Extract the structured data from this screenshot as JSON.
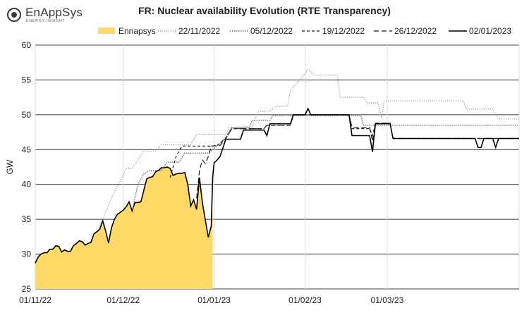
{
  "logo": {
    "name": "EnAppSys",
    "tagline": "ENERGY INSIGHT"
  },
  "chart_data": {
    "type": "line",
    "title": "FR: Nuclear availability Evolution (RTE Transparency)",
    "ylabel": "GW",
    "xlabel": "",
    "ylim": [
      25,
      60
    ],
    "yticks": [
      25,
      30,
      35,
      40,
      45,
      50,
      55,
      60
    ],
    "xlim": [
      "2022-11-01",
      "2023-04-15"
    ],
    "xticks": [
      {
        "date": "2022-11-01",
        "label": "01/11/22"
      },
      {
        "date": "2022-12-01",
        "label": "01/12/22"
      },
      {
        "date": "2023-01-01",
        "label": "01/01/23"
      },
      {
        "date": "2023-02-01",
        "label": "01/02/23"
      },
      {
        "date": "2023-03-01",
        "label": "01/03/23"
      }
    ],
    "grid": {
      "horizontal": true,
      "vertical": true
    },
    "legend_position": "top",
    "series": [
      {
        "name": "Ennapsys",
        "style": "area",
        "color": "#ffd966",
        "points": [
          [
            "2022-11-01",
            28.7
          ],
          [
            "2022-11-02",
            29.6
          ],
          [
            "2022-11-03",
            30.0
          ],
          [
            "2022-11-04",
            30.2
          ],
          [
            "2022-11-05",
            30.2
          ],
          [
            "2022-11-06",
            30.7
          ],
          [
            "2022-11-07",
            30.7
          ],
          [
            "2022-11-08",
            31.2
          ],
          [
            "2022-11-09",
            31.1
          ],
          [
            "2022-11-10",
            30.3
          ],
          [
            "2022-11-11",
            30.6
          ],
          [
            "2022-11-12",
            30.4
          ],
          [
            "2022-11-13",
            30.4
          ],
          [
            "2022-11-14",
            31.2
          ],
          [
            "2022-11-15",
            31.5
          ],
          [
            "2022-11-16",
            31.9
          ],
          [
            "2022-11-17",
            31.8
          ],
          [
            "2022-11-18",
            31.3
          ],
          [
            "2022-11-19",
            31.5
          ],
          [
            "2022-11-20",
            31.7
          ],
          [
            "2022-11-21",
            32.9
          ],
          [
            "2022-11-22",
            33.2
          ],
          [
            "2022-11-23",
            33.6
          ],
          [
            "2022-11-24",
            34.8
          ],
          [
            "2022-11-25",
            33.3
          ],
          [
            "2022-11-26",
            31.6
          ],
          [
            "2022-11-27",
            33.8
          ],
          [
            "2022-11-28",
            35.0
          ],
          [
            "2022-11-29",
            35.7
          ],
          [
            "2022-11-30",
            36.0
          ],
          [
            "2022-12-01",
            36.3
          ],
          [
            "2022-12-02",
            36.8
          ],
          [
            "2022-12-03",
            37.5
          ],
          [
            "2022-12-04",
            36.2
          ],
          [
            "2022-12-05",
            37.4
          ],
          [
            "2022-12-06",
            37.4
          ],
          [
            "2022-12-07",
            37.5
          ],
          [
            "2022-12-08",
            39.1
          ],
          [
            "2022-12-09",
            40.8
          ],
          [
            "2022-12-10",
            41.0
          ],
          [
            "2022-12-11",
            41.1
          ],
          [
            "2022-12-12",
            41.8
          ],
          [
            "2022-12-13",
            42.0
          ],
          [
            "2022-12-14",
            42.4
          ],
          [
            "2022-12-15",
            42.4
          ],
          [
            "2022-12-16",
            42.5
          ],
          [
            "2022-12-17",
            42.3
          ],
          [
            "2022-12-18",
            41.3
          ],
          [
            "2022-12-19",
            41.5
          ],
          [
            "2022-12-20",
            41.6
          ],
          [
            "2022-12-21",
            41.6
          ],
          [
            "2022-12-22",
            41.7
          ],
          [
            "2022-12-23",
            40.0
          ],
          [
            "2022-12-24",
            36.9
          ],
          [
            "2022-12-25",
            37.8
          ],
          [
            "2022-12-26",
            36.4
          ],
          [
            "2022-12-27",
            41.0
          ],
          [
            "2022-12-28",
            37.3
          ],
          [
            "2022-12-29",
            34.9
          ],
          [
            "2022-12-30",
            32.4
          ],
          [
            "2022-12-31",
            34.0
          ],
          [
            "2022-12-31T12:00",
            41.0
          ]
        ]
      },
      {
        "name": "22/11/2022",
        "style": "line",
        "dash": "dotted-fine",
        "color": "#808080",
        "points": [
          [
            "2022-11-22",
            33.6
          ],
          [
            "2022-11-24",
            35.0
          ],
          [
            "2022-11-26",
            37.0
          ],
          [
            "2022-11-28",
            39.0
          ],
          [
            "2022-11-30",
            40.5
          ],
          [
            "2022-12-02",
            42.3
          ],
          [
            "2022-12-04",
            42.3
          ],
          [
            "2022-12-06",
            43.5
          ],
          [
            "2022-12-08",
            44.8
          ],
          [
            "2022-12-12",
            44.8
          ],
          [
            "2022-12-14",
            45.7
          ],
          [
            "2022-12-24",
            45.7
          ],
          [
            "2022-12-26",
            47.2
          ],
          [
            "2023-01-05",
            47.2
          ],
          [
            "2023-01-06",
            48.2
          ],
          [
            "2023-01-14",
            48.3
          ],
          [
            "2023-01-16",
            50.5
          ],
          [
            "2023-01-20",
            50.5
          ],
          [
            "2023-01-22",
            51.2
          ],
          [
            "2023-01-26",
            51.2
          ],
          [
            "2023-01-27",
            53.5
          ],
          [
            "2023-01-31",
            55.4
          ],
          [
            "2023-02-02",
            56.5
          ],
          [
            "2023-02-04",
            55.7
          ],
          [
            "2023-02-12",
            55.7
          ],
          [
            "2023-02-13",
            52.5
          ],
          [
            "2023-02-21",
            52.5
          ],
          [
            "2023-02-22",
            51.7
          ],
          [
            "2023-02-26",
            51.7
          ],
          [
            "2023-02-27",
            49.5
          ],
          [
            "2023-02-28",
            52.0
          ],
          [
            "2023-03-27",
            52.0
          ],
          [
            "2023-03-28",
            50.8
          ],
          [
            "2023-04-06",
            50.8
          ],
          [
            "2023-04-08",
            49.4
          ],
          [
            "2023-04-15",
            49.4
          ]
        ]
      },
      {
        "name": "05/12/2022",
        "style": "line",
        "dash": "dotted",
        "color": "#555555",
        "points": [
          [
            "2022-12-04",
            36.0
          ],
          [
            "2022-12-06",
            40.0
          ],
          [
            "2022-12-08",
            41.5
          ],
          [
            "2022-12-10",
            42.0
          ],
          [
            "2022-12-14",
            42.0
          ],
          [
            "2022-12-16",
            43.2
          ],
          [
            "2022-12-20",
            43.2
          ],
          [
            "2022-12-22",
            44.5
          ],
          [
            "2022-12-30",
            44.5
          ],
          [
            "2023-01-02",
            45.5
          ],
          [
            "2023-01-05",
            46.8
          ],
          [
            "2023-01-07",
            48.2
          ],
          [
            "2023-01-13",
            48.2
          ],
          [
            "2023-01-14",
            49.2
          ],
          [
            "2023-01-20",
            49.2
          ],
          [
            "2023-01-21",
            49.9
          ],
          [
            "2023-02-20",
            49.9
          ],
          [
            "2023-02-21",
            48.5
          ],
          [
            "2023-04-15",
            48.5
          ]
        ]
      },
      {
        "name": "19/12/2022",
        "style": "line",
        "dash": "short-dash",
        "color": "#1a1a1a",
        "points": [
          [
            "2022-12-17",
            41.0
          ],
          [
            "2022-12-19",
            44.0
          ],
          [
            "2022-12-21",
            45.5
          ],
          [
            "2022-12-31",
            45.5
          ],
          [
            "2023-01-02",
            45.6
          ],
          [
            "2023-01-05",
            46.6
          ],
          [
            "2023-01-07",
            48.0
          ],
          [
            "2023-01-18",
            48.0
          ],
          [
            "2023-01-19",
            48.5
          ],
          [
            "2023-01-27",
            48.5
          ],
          [
            "2023-01-28",
            50.0
          ],
          [
            "2023-02-16",
            50.0
          ],
          [
            "2023-02-17",
            48.0
          ],
          [
            "2023-02-23",
            48.0
          ],
          [
            "2023-02-24",
            47.0
          ],
          [
            "2023-02-25",
            48.8
          ],
          [
            "2023-03-02",
            48.8
          ],
          [
            "2023-03-03",
            46.6
          ],
          [
            "2023-04-15",
            46.6
          ]
        ]
      },
      {
        "name": "26/12/2022",
        "style": "line",
        "dash": "long-dash",
        "color": "#1a1a1a",
        "points": [
          [
            "2022-12-26",
            38.0
          ],
          [
            "2022-12-27",
            42.0
          ],
          [
            "2022-12-28",
            43.5
          ],
          [
            "2022-12-29",
            43.0
          ],
          [
            "2022-12-30",
            44.0
          ],
          [
            "2022-12-31",
            45.5
          ],
          [
            "2023-01-03",
            45.6
          ],
          [
            "2023-01-05",
            46.6
          ],
          [
            "2023-01-07",
            48.0
          ],
          [
            "2023-01-18",
            48.0
          ],
          [
            "2023-01-19",
            48.5
          ],
          [
            "2023-01-27",
            48.5
          ],
          [
            "2023-01-28",
            50.0
          ],
          [
            "2023-02-16",
            50.0
          ],
          [
            "2023-02-17",
            48.2
          ],
          [
            "2023-02-23",
            48.2
          ],
          [
            "2023-02-24",
            46.2
          ],
          [
            "2023-02-25",
            48.8
          ],
          [
            "2023-03-02",
            48.8
          ],
          [
            "2023-03-03",
            46.6
          ],
          [
            "2023-04-15",
            46.6
          ]
        ]
      },
      {
        "name": "02/01/2023",
        "style": "line",
        "dash": "solid",
        "color": "#000000",
        "points": [
          [
            "2022-12-31T12:00",
            41.0
          ],
          [
            "2023-01-01",
            43.1
          ],
          [
            "2023-01-02",
            43.5
          ],
          [
            "2023-01-03",
            44.0
          ],
          [
            "2023-01-05",
            46.5
          ],
          [
            "2023-01-10",
            46.5
          ],
          [
            "2023-01-11",
            47.8
          ],
          [
            "2023-01-18",
            47.8
          ],
          [
            "2023-01-19",
            47.0
          ],
          [
            "2023-01-20",
            48.7
          ],
          [
            "2023-01-27",
            48.7
          ],
          [
            "2023-01-28",
            50.0
          ],
          [
            "2023-02-01",
            50.0
          ],
          [
            "2023-02-02",
            50.9
          ],
          [
            "2023-02-03",
            50.0
          ],
          [
            "2023-02-16",
            50.0
          ],
          [
            "2023-02-17",
            47.0
          ],
          [
            "2023-02-23",
            47.0
          ],
          [
            "2023-02-24",
            44.7
          ],
          [
            "2023-02-25",
            48.7
          ],
          [
            "2023-03-02",
            48.7
          ],
          [
            "2023-03-03",
            46.6
          ],
          [
            "2023-03-31",
            46.6
          ],
          [
            "2023-04-01",
            45.3
          ],
          [
            "2023-04-02",
            45.3
          ],
          [
            "2023-04-03",
            46.6
          ],
          [
            "2023-04-06",
            46.6
          ],
          [
            "2023-04-07",
            45.3
          ],
          [
            "2023-04-08",
            46.6
          ],
          [
            "2023-04-15",
            46.6
          ]
        ]
      }
    ]
  }
}
